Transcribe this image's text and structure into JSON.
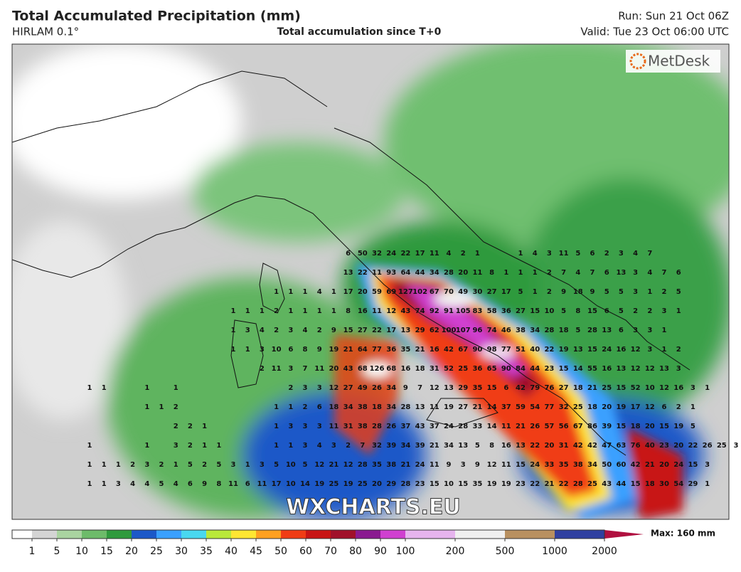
{
  "header": {
    "title": "Total Accumulated Precipitation (mm)",
    "model": "HIRLAM 0.1°",
    "subtitle": "Total accumulation since T+0",
    "run": "Run: Sun 21 Oct 06Z",
    "valid": "Valid: Tue 23 Oct 06:00 UTC"
  },
  "logo": "MetDesk",
  "watermark": "WXCHARTS.EU",
  "legend": {
    "labels": [
      1,
      5,
      10,
      15,
      20,
      25,
      30,
      35,
      40,
      45,
      50,
      60,
      70,
      80,
      90,
      100,
      200,
      500,
      1000,
      2000
    ],
    "colors": [
      "#ffffff",
      "#d4d4d4",
      "#a9d3a0",
      "#6dbb6a",
      "#2f9a3d",
      "#1c58c8",
      "#3aa0ff",
      "#49d8f0",
      "#b9e83a",
      "#ffe632",
      "#ffa020",
      "#f03c14",
      "#c81414",
      "#a0102a",
      "#8a1a90",
      "#d040d0",
      "#e6b4ee",
      "#f0f0f0",
      "#b89060",
      "#3040a0",
      "#b01040"
    ],
    "max": "Max: 160 mm"
  },
  "grid_rows": [
    {
      "start": 23,
      "values": [
        6,
        50,
        32,
        24,
        22,
        17,
        11,
        4,
        2,
        1,
        null,
        null,
        1,
        4,
        3,
        11,
        5,
        6,
        2,
        3,
        4,
        7
      ]
    },
    {
      "start": 23,
      "values": [
        13,
        22,
        11,
        93,
        64,
        44,
        34,
        28,
        20,
        11,
        8,
        1,
        1,
        1,
        2,
        7,
        4,
        7,
        6,
        13,
        3,
        4,
        7,
        6
      ]
    },
    {
      "start": 18,
      "values": [
        1,
        1,
        1,
        4,
        1,
        17,
        20,
        59,
        69,
        127,
        102,
        67,
        70,
        49,
        30,
        27,
        17,
        5,
        1,
        2,
        9,
        18,
        9,
        5,
        5,
        3,
        1,
        2,
        5
      ]
    },
    {
      "start": 15,
      "values": [
        1,
        1,
        1,
        2,
        1,
        1,
        1,
        1,
        8,
        16,
        11,
        12,
        43,
        74,
        92,
        91,
        105,
        83,
        58,
        36,
        27,
        15,
        10,
        5,
        8,
        15,
        6,
        5,
        2,
        2,
        3,
        1
      ]
    },
    {
      "start": 15,
      "values": [
        1,
        3,
        4,
        2,
        3,
        4,
        2,
        9,
        15,
        27,
        22,
        17,
        13,
        29,
        62,
        100,
        107,
        96,
        74,
        46,
        38,
        34,
        28,
        18,
        5,
        28,
        13,
        6,
        3,
        3,
        1
      ]
    },
    {
      "start": 15,
      "values": [
        1,
        1,
        3,
        10,
        6,
        8,
        9,
        19,
        21,
        64,
        77,
        36,
        35,
        21,
        16,
        42,
        67,
        90,
        98,
        77,
        51,
        40,
        22,
        19,
        13,
        15,
        24,
        16,
        12,
        3,
        1,
        2
      ]
    },
    {
      "start": 17,
      "values": [
        2,
        11,
        3,
        7,
        11,
        20,
        43,
        68,
        126,
        68,
        16,
        18,
        31,
        52,
        25,
        36,
        65,
        90,
        84,
        44,
        23,
        15,
        14,
        55,
        16,
        13,
        12,
        12,
        13,
        3
      ]
    },
    {
      "start": 5,
      "values": [
        1,
        1,
        null,
        null,
        1,
        null,
        1,
        null,
        null,
        null,
        null,
        null,
        null,
        null,
        2,
        3,
        3,
        12,
        27,
        49,
        26,
        34,
        9,
        7,
        12,
        13,
        29,
        35,
        15,
        6,
        42,
        79,
        76,
        27,
        18,
        21,
        25,
        15,
        52,
        10,
        12,
        16,
        3,
        1
      ]
    },
    {
      "start": 9,
      "values": [
        1,
        1,
        2,
        null,
        null,
        null,
        null,
        null,
        null,
        1,
        1,
        2,
        6,
        18,
        34,
        38,
        18,
        34,
        28,
        13,
        11,
        19,
        27,
        21,
        14,
        37,
        59,
        54,
        77,
        32,
        25,
        18,
        20,
        19,
        17,
        12,
        6,
        2,
        1
      ]
    },
    {
      "start": 11,
      "values": [
        2,
        2,
        1,
        null,
        null,
        null,
        null,
        1,
        3,
        3,
        3,
        11,
        31,
        38,
        28,
        26,
        37,
        43,
        37,
        24,
        28,
        33,
        14,
        11,
        21,
        26,
        57,
        56,
        67,
        86,
        39,
        15,
        18,
        20,
        15,
        19,
        5
      ]
    },
    {
      "start": 5,
      "values": [
        1,
        null,
        null,
        null,
        1,
        null,
        3,
        2,
        1,
        1,
        null,
        null,
        null,
        1,
        1,
        3,
        4,
        3,
        2,
        7,
        32,
        39,
        34,
        39,
        21,
        34,
        13,
        5,
        8,
        16,
        13,
        22,
        20,
        31,
        42,
        42,
        47,
        63,
        76,
        40,
        23,
        20,
        22,
        26,
        25,
        3
      ]
    },
    {
      "start": 5,
      "values": [
        1,
        1,
        1,
        2,
        3,
        2,
        1,
        5,
        2,
        5,
        3,
        1,
        3,
        5,
        10,
        5,
        12,
        21,
        12,
        28,
        35,
        38,
        21,
        24,
        11,
        9,
        3,
        9,
        12,
        11,
        15,
        24,
        33,
        35,
        38,
        34,
        50,
        60,
        42,
        21,
        20,
        24,
        15,
        3
      ]
    },
    {
      "start": 5,
      "values": [
        1,
        1,
        3,
        4,
        4,
        5,
        4,
        6,
        9,
        8,
        11,
        6,
        11,
        17,
        10,
        14,
        19,
        25,
        19,
        25,
        20,
        29,
        28,
        23,
        15,
        10,
        15,
        35,
        19,
        19,
        23,
        22,
        21,
        22,
        28,
        25,
        43,
        44,
        15,
        18,
        30,
        54,
        29,
        1
      ]
    }
  ]
}
